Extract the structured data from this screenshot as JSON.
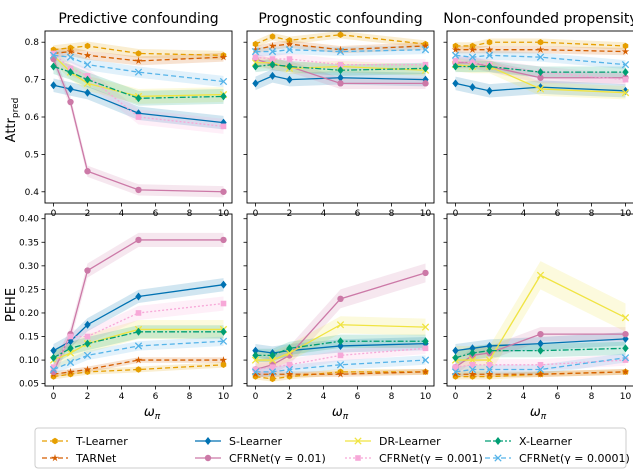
{
  "figure": {
    "x_axis_label": "ω",
    "x_axis_label_sub": "π",
    "row_ylabels": [
      {
        "main": "Attr",
        "sub": "pred"
      },
      {
        "main": "PEHE",
        "sub": ""
      }
    ]
  },
  "legend": [
    {
      "key": "t",
      "label": "T-Learner"
    },
    {
      "key": "tar",
      "label": "TARNet"
    },
    {
      "key": "s",
      "label": "S-Learner"
    },
    {
      "key": "c01",
      "label": "CFRNet(γ = 0.01)"
    },
    {
      "key": "dr",
      "label": "DR-Learner"
    },
    {
      "key": "c001",
      "label": "CFRNet(γ = 0.001)"
    },
    {
      "key": "x",
      "label": "X-Learner"
    },
    {
      "key": "c0001",
      "label": "CFRNet(γ = 0.0001)"
    }
  ],
  "styles": {
    "t": {
      "color": "#e69f00",
      "dash": "5,3",
      "marker": "hexagon"
    },
    "tar": {
      "color": "#d55e00",
      "dash": "5,3",
      "marker": "star"
    },
    "s": {
      "color": "#0072b2",
      "dash": "",
      "marker": "diamond"
    },
    "c01": {
      "color": "#cc79a7",
      "dash": "",
      "marker": "circle"
    },
    "dr": {
      "color": "#f0e442",
      "dash": "",
      "marker": "x"
    },
    "c001": {
      "color": "#f7a8d8",
      "dash": "2,2",
      "marker": "square"
    },
    "x": {
      "color": "#009e73",
      "dash": "6,2,2,2",
      "marker": "diamond"
    },
    "c0001": {
      "color": "#56b4e9",
      "dash": "5,3",
      "marker": "x"
    }
  },
  "chart_data": [
    {
      "type": "line",
      "title": "Predictive confounding",
      "xlabel": "ω_π",
      "ylabel": "Attr_pred",
      "xlim": [
        -0.5,
        10.5
      ],
      "ylim": [
        0.37,
        0.83
      ],
      "xticks": [
        0,
        2,
        4,
        6,
        8,
        10
      ],
      "yticks": [
        0.4,
        0.5,
        0.6,
        0.7,
        0.8
      ],
      "x": [
        0,
        1,
        2,
        5,
        10
      ],
      "series": [
        {
          "key": "t",
          "name": "T-Learner",
          "values": [
            0.78,
            0.785,
            0.79,
            0.77,
            0.765
          ],
          "band": 0.012
        },
        {
          "key": "tar",
          "name": "TARNet",
          "values": [
            0.77,
            0.775,
            0.765,
            0.75,
            0.76
          ],
          "band": 0.012
        },
        {
          "key": "s",
          "name": "S-Learner",
          "values": [
            0.685,
            0.675,
            0.665,
            0.61,
            0.585
          ],
          "band": 0.018
        },
        {
          "key": "c01",
          "name": "CFRNet(γ = 0.01)",
          "values": [
            0.755,
            0.64,
            0.455,
            0.405,
            0.4
          ],
          "band": 0.015
        },
        {
          "key": "dr",
          "name": "DR-Learner",
          "values": [
            0.765,
            0.72,
            0.69,
            0.655,
            0.66
          ],
          "band": 0.02
        },
        {
          "key": "c001",
          "name": "CFRNet(γ = 0.001)",
          "values": [
            0.77,
            0.73,
            0.71,
            0.6,
            0.575
          ],
          "band": 0.02
        },
        {
          "key": "x",
          "name": "X-Learner",
          "values": [
            0.735,
            0.72,
            0.7,
            0.65,
            0.655
          ],
          "band": 0.02
        },
        {
          "key": "c0001",
          "name": "CFRNet(γ = 0.0001)",
          "values": [
            0.765,
            0.76,
            0.74,
            0.72,
            0.695
          ],
          "band": 0.015
        }
      ]
    },
    {
      "type": "line",
      "title": "Prognostic confounding",
      "xlabel": "ω_π",
      "ylabel": "",
      "xlim": [
        -0.5,
        10.5
      ],
      "ylim": [
        0.37,
        0.83
      ],
      "xticks": [
        0,
        2,
        4,
        6,
        8,
        10
      ],
      "yticks": [
        0.4,
        0.5,
        0.6,
        0.7,
        0.8
      ],
      "x": [
        0,
        1,
        2,
        5,
        10
      ],
      "series": [
        {
          "key": "t",
          "name": "T-Learner",
          "values": [
            0.795,
            0.815,
            0.805,
            0.82,
            0.795
          ],
          "band": 0.01
        },
        {
          "key": "tar",
          "name": "TARNet",
          "values": [
            0.78,
            0.79,
            0.795,
            0.78,
            0.79
          ],
          "band": 0.01
        },
        {
          "key": "s",
          "name": "S-Learner",
          "values": [
            0.69,
            0.71,
            0.7,
            0.705,
            0.7
          ],
          "band": 0.018
        },
        {
          "key": "c01",
          "name": "CFRNet(γ = 0.01)",
          "values": [
            0.755,
            0.74,
            0.735,
            0.69,
            0.69
          ],
          "band": 0.015
        },
        {
          "key": "dr",
          "name": "DR-Learner",
          "values": [
            0.745,
            0.745,
            0.73,
            0.735,
            0.725
          ],
          "band": 0.015
        },
        {
          "key": "c001",
          "name": "CFRNet(γ = 0.001)",
          "values": [
            0.76,
            0.755,
            0.755,
            0.74,
            0.74
          ],
          "band": 0.015
        },
        {
          "key": "x",
          "name": "X-Learner",
          "values": [
            0.735,
            0.74,
            0.735,
            0.725,
            0.73
          ],
          "band": 0.015
        },
        {
          "key": "c0001",
          "name": "CFRNet(γ = 0.0001)",
          "values": [
            0.775,
            0.775,
            0.78,
            0.775,
            0.78
          ],
          "band": 0.012
        }
      ]
    },
    {
      "type": "line",
      "title": "Non-confounded propensity",
      "xlabel": "ω_π",
      "ylabel": "",
      "xlim": [
        -0.5,
        10.5
      ],
      "ylim": [
        0.37,
        0.83
      ],
      "xticks": [
        0,
        2,
        4,
        6,
        8,
        10
      ],
      "yticks": [
        0.4,
        0.5,
        0.6,
        0.7,
        0.8
      ],
      "x": [
        0,
        1,
        2,
        5,
        10
      ],
      "series": [
        {
          "key": "t",
          "name": "T-Learner",
          "values": [
            0.79,
            0.79,
            0.8,
            0.8,
            0.79
          ],
          "band": 0.01
        },
        {
          "key": "tar",
          "name": "TARNet",
          "values": [
            0.78,
            0.78,
            0.78,
            0.78,
            0.775
          ],
          "band": 0.01
        },
        {
          "key": "s",
          "name": "S-Learner",
          "values": [
            0.69,
            0.68,
            0.67,
            0.68,
            0.67
          ],
          "band": 0.018
        },
        {
          "key": "c01",
          "name": "CFRNet(γ = 0.01)",
          "values": [
            0.745,
            0.745,
            0.735,
            0.705,
            0.705
          ],
          "band": 0.015
        },
        {
          "key": "dr",
          "name": "DR-Learner",
          "values": [
            0.74,
            0.735,
            0.735,
            0.675,
            0.665
          ],
          "band": 0.018
        },
        {
          "key": "c001",
          "name": "CFRNet(γ = 0.001)",
          "values": [
            0.75,
            0.745,
            0.74,
            0.72,
            0.7
          ],
          "band": 0.015
        },
        {
          "key": "x",
          "name": "X-Learner",
          "values": [
            0.735,
            0.735,
            0.735,
            0.72,
            0.72
          ],
          "band": 0.015
        },
        {
          "key": "c0001",
          "name": "CFRNet(γ = 0.0001)",
          "values": [
            0.765,
            0.76,
            0.765,
            0.76,
            0.74
          ],
          "band": 0.012
        }
      ]
    },
    {
      "type": "line",
      "title": "",
      "xlabel": "ω_π",
      "ylabel": "PEHE",
      "xlim": [
        -0.5,
        10.5
      ],
      "ylim": [
        0.045,
        0.41
      ],
      "xticks": [
        0,
        2,
        4,
        6,
        8,
        10
      ],
      "yticks": [
        0.05,
        0.1,
        0.15,
        0.2,
        0.25,
        0.3,
        0.35,
        0.4
      ],
      "x": [
        0,
        1,
        2,
        5,
        10
      ],
      "series": [
        {
          "key": "t",
          "name": "T-Learner",
          "values": [
            0.065,
            0.07,
            0.075,
            0.08,
            0.09
          ],
          "band": 0.006
        },
        {
          "key": "tar",
          "name": "TARNet",
          "values": [
            0.07,
            0.075,
            0.08,
            0.1,
            0.1
          ],
          "band": 0.006
        },
        {
          "key": "s",
          "name": "S-Learner",
          "values": [
            0.12,
            0.14,
            0.175,
            0.235,
            0.26
          ],
          "band": 0.014
        },
        {
          "key": "c01",
          "name": "CFRNet(γ = 0.01)",
          "values": [
            0.075,
            0.155,
            0.29,
            0.355,
            0.355
          ],
          "band": 0.015
        },
        {
          "key": "dr",
          "name": "DR-Learner",
          "values": [
            0.1,
            0.115,
            0.135,
            0.165,
            0.165
          ],
          "band": 0.02
        },
        {
          "key": "c001",
          "name": "CFRNet(γ = 0.001)",
          "values": [
            0.085,
            0.15,
            0.15,
            0.2,
            0.22
          ],
          "band": 0.015
        },
        {
          "key": "x",
          "name": "X-Learner",
          "values": [
            0.105,
            0.125,
            0.135,
            0.16,
            0.16
          ],
          "band": 0.014
        },
        {
          "key": "c0001",
          "name": "CFRNet(γ = 0.0001)",
          "values": [
            0.08,
            0.095,
            0.11,
            0.13,
            0.14
          ],
          "band": 0.01
        }
      ]
    },
    {
      "type": "line",
      "title": "",
      "xlabel": "ω_π",
      "ylabel": "",
      "xlim": [
        -0.5,
        10.5
      ],
      "ylim": [
        0.045,
        0.41
      ],
      "xticks": [
        0,
        2,
        4,
        6,
        8,
        10
      ],
      "yticks": [
        0.05,
        0.1,
        0.15,
        0.2,
        0.25,
        0.3,
        0.35,
        0.4
      ],
      "x": [
        0,
        1,
        2,
        5,
        10
      ],
      "series": [
        {
          "key": "t",
          "name": "T-Learner",
          "values": [
            0.065,
            0.06,
            0.065,
            0.075,
            0.075
          ],
          "band": 0.006
        },
        {
          "key": "tar",
          "name": "TARNet",
          "values": [
            0.07,
            0.07,
            0.07,
            0.07,
            0.075
          ],
          "band": 0.006
        },
        {
          "key": "s",
          "name": "S-Learner",
          "values": [
            0.12,
            0.115,
            0.12,
            0.13,
            0.135
          ],
          "band": 0.014
        },
        {
          "key": "c01",
          "name": "CFRNet(γ = 0.01)",
          "values": [
            0.08,
            0.09,
            0.11,
            0.23,
            0.285
          ],
          "band": 0.02
        },
        {
          "key": "dr",
          "name": "DR-Learner",
          "values": [
            0.1,
            0.1,
            0.115,
            0.175,
            0.17
          ],
          "band": 0.018
        },
        {
          "key": "c001",
          "name": "CFRNet(γ = 0.001)",
          "values": [
            0.08,
            0.085,
            0.09,
            0.11,
            0.125
          ],
          "band": 0.012
        },
        {
          "key": "x",
          "name": "X-Learner",
          "values": [
            0.11,
            0.11,
            0.125,
            0.14,
            0.14
          ],
          "band": 0.014
        },
        {
          "key": "c0001",
          "name": "CFRNet(γ = 0.0001)",
          "values": [
            0.075,
            0.075,
            0.08,
            0.09,
            0.1
          ],
          "band": 0.01
        }
      ]
    },
    {
      "type": "line",
      "title": "",
      "xlabel": "ω_π",
      "ylabel": "",
      "xlim": [
        -0.5,
        10.5
      ],
      "ylim": [
        0.045,
        0.41
      ],
      "xticks": [
        0,
        2,
        4,
        6,
        8,
        10
      ],
      "yticks": [
        0.05,
        0.1,
        0.15,
        0.2,
        0.25,
        0.3,
        0.35,
        0.4
      ],
      "x": [
        0,
        1,
        2,
        5,
        10
      ],
      "series": [
        {
          "key": "t",
          "name": "T-Learner",
          "values": [
            0.065,
            0.065,
            0.065,
            0.07,
            0.075
          ],
          "band": 0.006
        },
        {
          "key": "tar",
          "name": "TARNet",
          "values": [
            0.07,
            0.07,
            0.07,
            0.07,
            0.075
          ],
          "band": 0.006
        },
        {
          "key": "s",
          "name": "S-Learner",
          "values": [
            0.12,
            0.125,
            0.13,
            0.135,
            0.145
          ],
          "band": 0.014
        },
        {
          "key": "c01",
          "name": "CFRNet(γ = 0.01)",
          "values": [
            0.085,
            0.11,
            0.115,
            0.155,
            0.155
          ],
          "band": 0.015
        },
        {
          "key": "dr",
          "name": "DR-Learner",
          "values": [
            0.1,
            0.1,
            0.1,
            0.28,
            0.19
          ],
          "band": 0.03
        },
        {
          "key": "c001",
          "name": "CFRNet(γ = 0.001)",
          "values": [
            0.085,
            0.09,
            0.09,
            0.09,
            0.1
          ],
          "band": 0.012
        },
        {
          "key": "x",
          "name": "X-Learner",
          "values": [
            0.105,
            0.115,
            0.12,
            0.12,
            0.125
          ],
          "band": 0.014
        },
        {
          "key": "c0001",
          "name": "CFRNet(γ = 0.0001)",
          "values": [
            0.075,
            0.08,
            0.08,
            0.08,
            0.105
          ],
          "band": 0.01
        }
      ]
    }
  ]
}
